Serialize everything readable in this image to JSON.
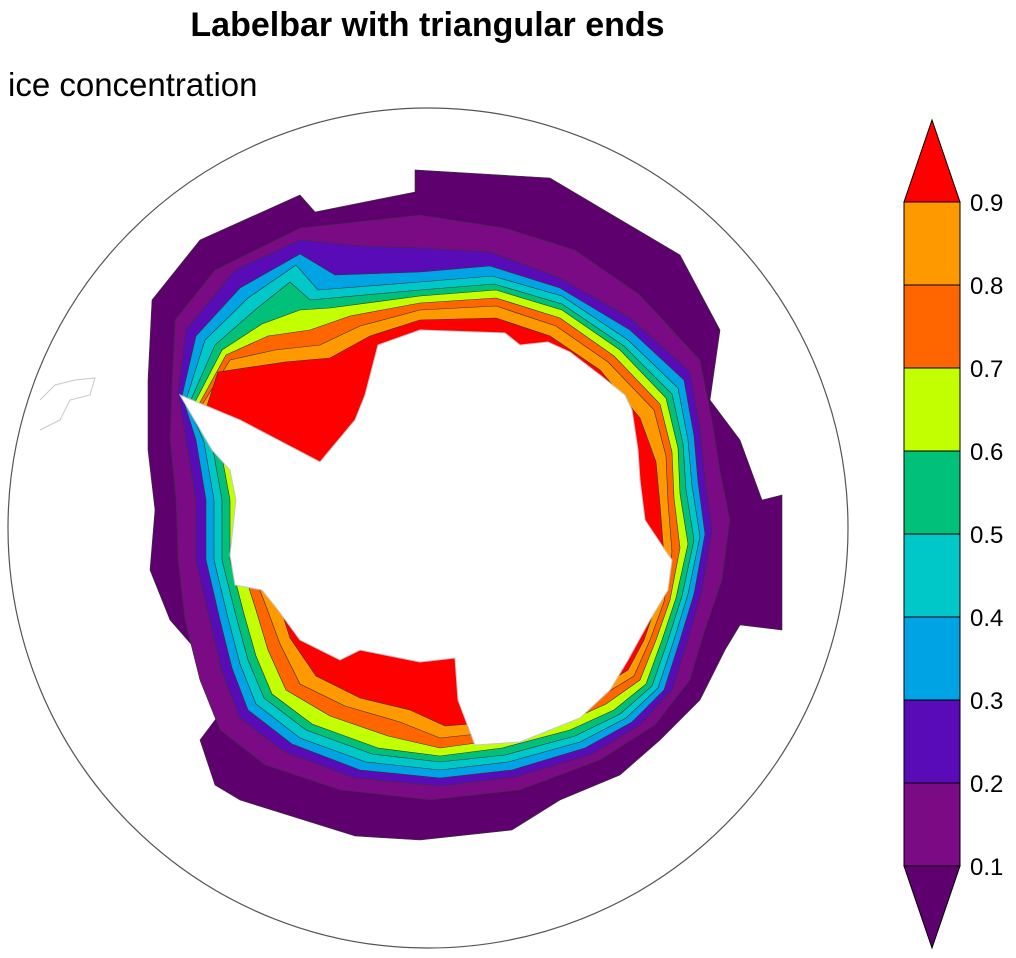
{
  "title": "Labelbar with triangular ends",
  "subtitle": "ice concentration",
  "colors": {
    "ocean": "#ffffff",
    "land": "#ffffff",
    "coast": "#c8c8c8",
    "border": "#555555"
  },
  "labelbar": {
    "end_style": "triangular",
    "levels": [
      {
        "color": "#5e006e",
        "label": ""
      },
      {
        "color": "#7a0b85",
        "label": "0.1"
      },
      {
        "color": "#5a0bb8",
        "label": "0.2"
      },
      {
        "color": "#00a4e4",
        "label": "0.3"
      },
      {
        "color": "#00c8c8",
        "label": "0.4"
      },
      {
        "color": "#00c07a",
        "label": "0.5"
      },
      {
        "color": "#c2ff00",
        "label": "0.6"
      },
      {
        "color": "#ff6600",
        "label": "0.7"
      },
      {
        "color": "#ff9900",
        "label": "0.8"
      },
      {
        "color": "#ff0000",
        "label": "0.9"
      }
    ]
  }
}
